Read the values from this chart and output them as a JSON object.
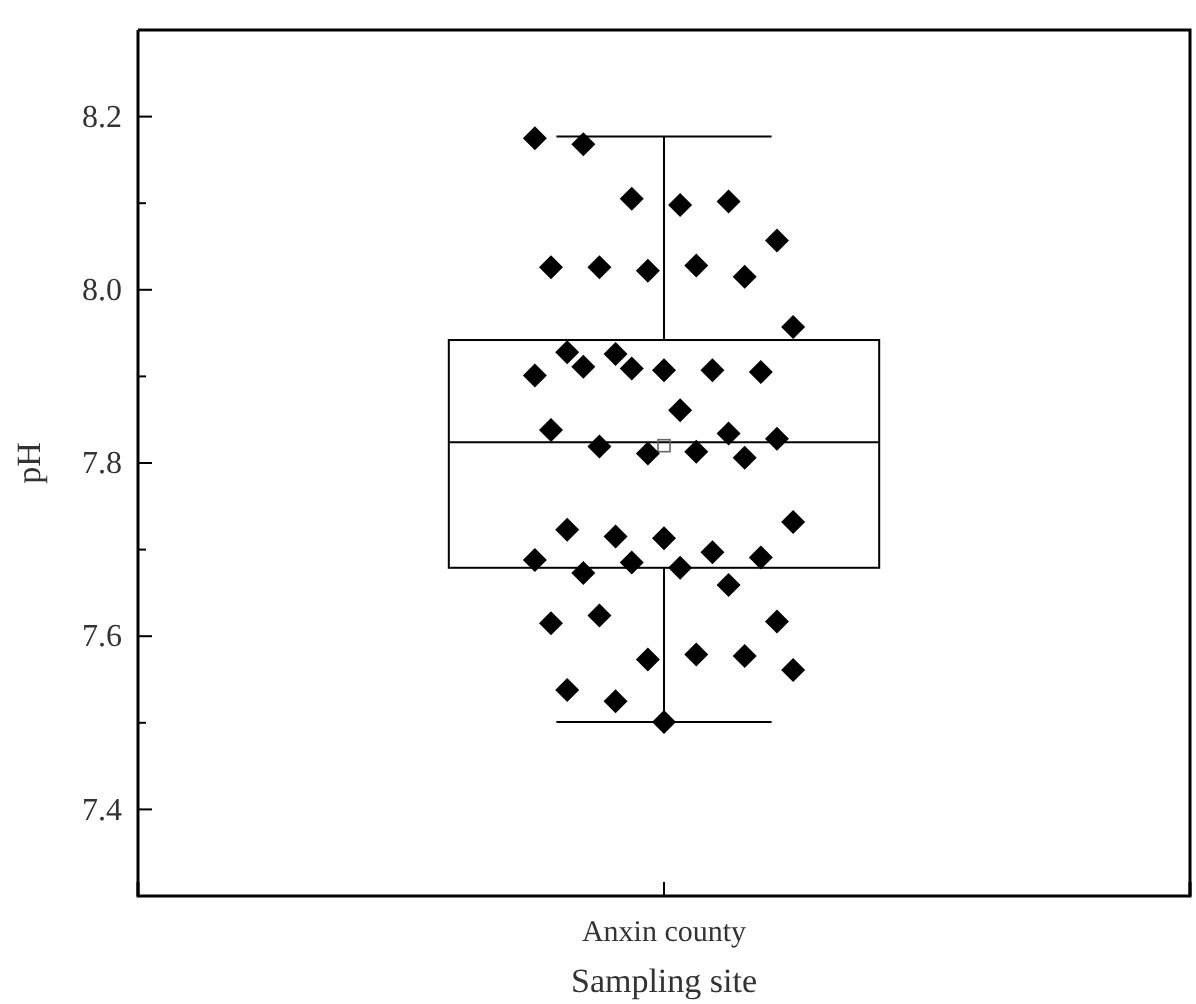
{
  "chart_data": {
    "type": "box",
    "xlabel": "Sampling site",
    "ylabel": "pH",
    "categories": [
      "Anxin county"
    ],
    "boxes": [
      {
        "low": 7.501,
        "q1": 7.679,
        "median": 7.824,
        "q3": 7.942,
        "high": 8.177,
        "mean": 7.82
      }
    ],
    "ylim": [
      7.3,
      8.3
    ],
    "yticks": [
      7.4,
      {
        "value": 7.5,
        "label": null
      },
      7.6,
      {
        "value": 7.7,
        "label": null
      },
      7.8,
      {
        "value": 7.9,
        "label": null
      },
      {
        "value": 8,
        "label": "8.0"
      },
      {
        "value": 8.1,
        "label": null
      },
      8.2
    ],
    "grid": false,
    "series": [
      {
        "type": "scatter",
        "color": "#000000",
        "marker": "diamond",
        "x": [
          "Anxin county",
          "Anxin county",
          "Anxin county",
          "Anxin county",
          "Anxin county",
          "Anxin county",
          "Anxin county",
          "Anxin county",
          "Anxin county",
          "Anxin county",
          "Anxin county",
          "Anxin county",
          "Anxin county",
          "Anxin county",
          "Anxin county",
          "Anxin county",
          "Anxin county",
          "Anxin county",
          "Anxin county",
          "Anxin county",
          "Anxin county",
          "Anxin county",
          "Anxin county",
          "Anxin county",
          "Anxin county",
          "Anxin county",
          "Anxin county",
          "Anxin county",
          "Anxin county",
          "Anxin county",
          "Anxin county",
          "Anxin county",
          "Anxin county",
          "Anxin county",
          "Anxin county",
          "Anxin county",
          "Anxin county",
          "Anxin county",
          "Anxin county",
          "Anxin county",
          "Anxin county",
          "Anxin county",
          "Anxin county",
          "Anxin county",
          "Anxin county",
          "Anxin county",
          "Anxin county",
          "Anxin county",
          "Anxin county"
        ],
        "values": [
          8.175,
          8.168,
          8.105,
          8.098,
          8.102,
          8.057,
          8.026,
          8.026,
          8.022,
          8.028,
          8.015,
          7.957,
          7.928,
          7.926,
          7.907,
          7.907,
          7.905,
          7.901,
          7.911,
          7.909,
          7.861,
          7.834,
          7.828,
          7.838,
          7.819,
          7.811,
          7.813,
          7.806,
          7.732,
          7.723,
          7.715,
          7.713,
          7.697,
          7.691,
          7.688,
          7.673,
          7.685,
          7.679,
          7.659,
          7.617,
          7.615,
          7.624,
          7.573,
          7.579,
          7.577,
          7.561,
          7.538,
          7.525,
          7.501
        ]
      }
    ]
  }
}
